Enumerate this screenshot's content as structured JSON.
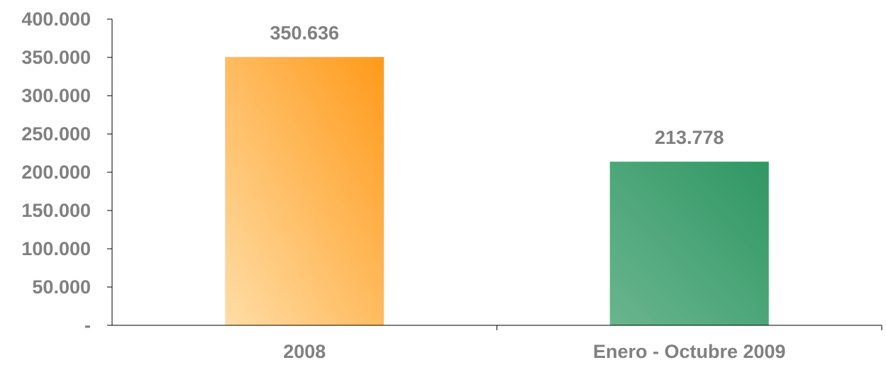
{
  "chart_data": {
    "type": "bar",
    "title": "",
    "xlabel": "",
    "ylabel": "",
    "categories": [
      "2008",
      "Enero - Octubre 2009"
    ],
    "values": [
      350636,
      213778
    ],
    "data_labels": [
      "350.636",
      "213.778"
    ],
    "ylim": [
      0,
      400000
    ],
    "y_ticks": [
      0,
      50000,
      100000,
      150000,
      200000,
      250000,
      300000,
      350000,
      400000
    ],
    "y_tick_labels": [
      "-",
      "50.000",
      "100.000",
      "150.000",
      "200.000",
      "250.000",
      "300.000",
      "350.000",
      "400.000"
    ],
    "grid": false,
    "legend": "none",
    "colors": {
      "bar_1": {
        "light": "#FFDDA6",
        "dark": "#FF9A1A"
      },
      "bar_2": {
        "light": "#6AB58E",
        "dark": "#2F9763"
      },
      "text": "#808080",
      "axis": "#000000"
    }
  }
}
